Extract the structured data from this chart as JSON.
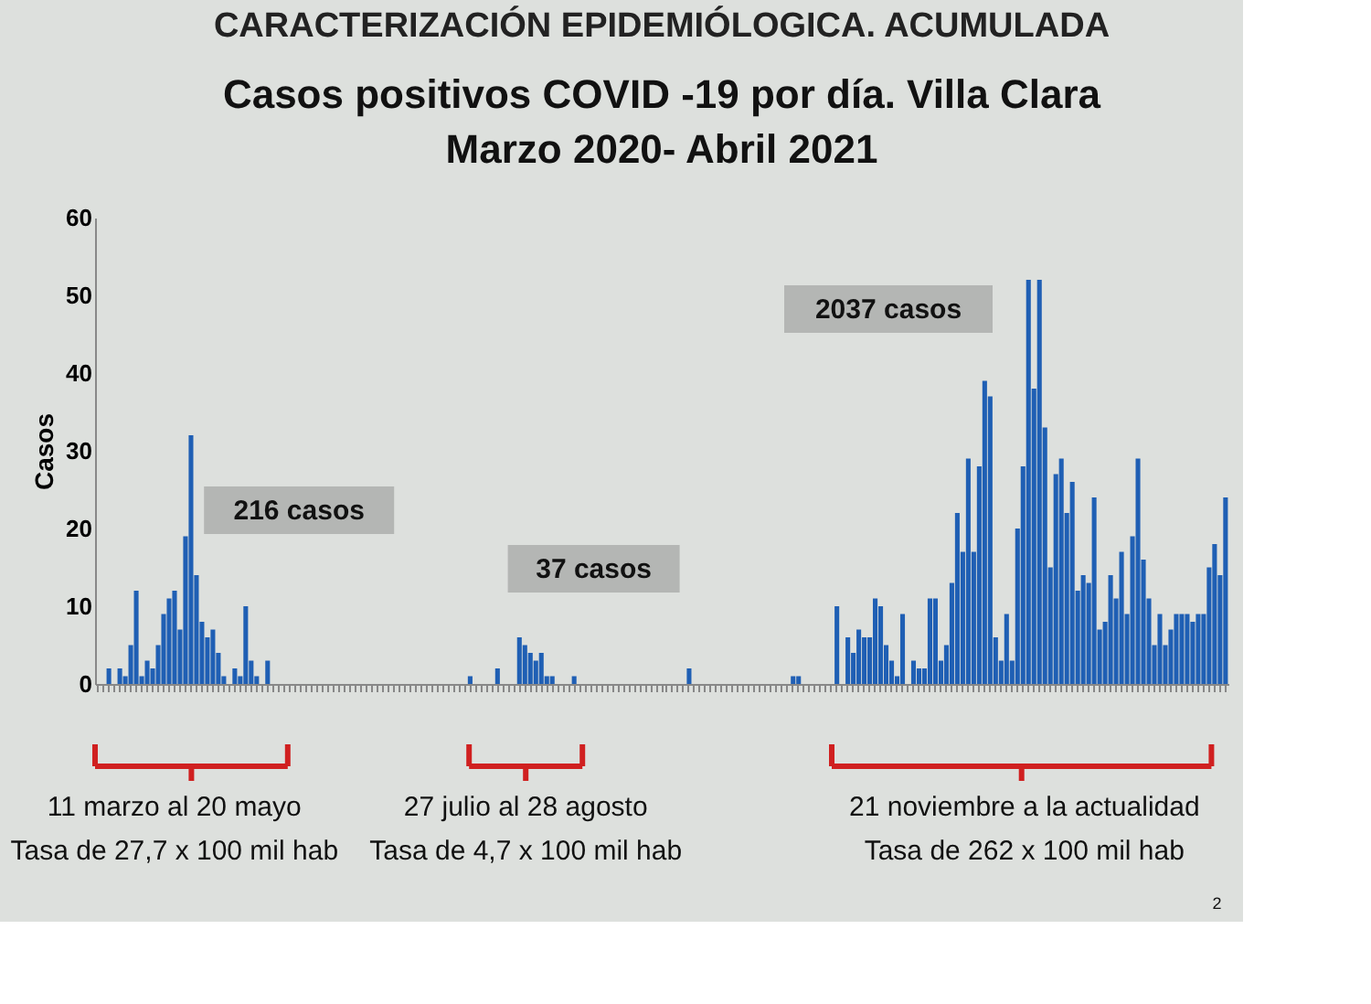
{
  "chart_data": {
    "type": "bar",
    "title": "CARACTERIZACIÓN EPIDEMIÓLOGICA. ACUMULADA",
    "subtitle": "Casos positivos COVID -19 por día. Villa Clara\nMarzo 2020- Abril 2021",
    "ylabel": "Casos",
    "categories": [
      null,
      null,
      null,
      null,
      null,
      null,
      null,
      null,
      null,
      null,
      null,
      null,
      null,
      null,
      null,
      null,
      null,
      null,
      null,
      null,
      null,
      null,
      null,
      null,
      null,
      null,
      null,
      null,
      null,
      null,
      null,
      null,
      null,
      null,
      null,
      null,
      null,
      null,
      null,
      null,
      null,
      null,
      null,
      null,
      null,
      null,
      null,
      null,
      null,
      null,
      null,
      null,
      null,
      null,
      null,
      null,
      null,
      null,
      null,
      null,
      null,
      null,
      null,
      null,
      null,
      null,
      null,
      null,
      null,
      null,
      null,
      null,
      null,
      null,
      null,
      null,
      null,
      null,
      null,
      null,
      null,
      null,
      null,
      null,
      null,
      null,
      null,
      null,
      null,
      null,
      null,
      null,
      null,
      null,
      null,
      null,
      null,
      null,
      null,
      null,
      null,
      null,
      null,
      null,
      null,
      null,
      null,
      null,
      null,
      null,
      null,
      null,
      null,
      null,
      null,
      null,
      null,
      null,
      null,
      null,
      null,
      null,
      null,
      null,
      null,
      null,
      null,
      null,
      null,
      null,
      null,
      null,
      null,
      null,
      null,
      null,
      null,
      null,
      null,
      null,
      null,
      null,
      null,
      null,
      null,
      null,
      null,
      null,
      null,
      null,
      null,
      null,
      null,
      null,
      null,
      null,
      null,
      null,
      null,
      null,
      null,
      null,
      null,
      null,
      null,
      null,
      null,
      null,
      null,
      null,
      null,
      null,
      null,
      null,
      null,
      null,
      null,
      null,
      null,
      null,
      null,
      null,
      null,
      null,
      null,
      null,
      null,
      null,
      null,
      null,
      null,
      null,
      null,
      null,
      null,
      null,
      null,
      null,
      null,
      null,
      null,
      null,
      null,
      null,
      null,
      null,
      null
    ],
    "values": [
      0,
      0,
      2,
      0,
      2,
      1,
      5,
      12,
      1,
      3,
      2,
      5,
      9,
      11,
      12,
      7,
      19,
      32,
      14,
      8,
      6,
      7,
      4,
      1,
      0,
      2,
      1,
      10,
      3,
      1,
      0,
      3,
      0,
      0,
      0,
      0,
      0,
      0,
      0,
      0,
      0,
      0,
      0,
      0,
      0,
      0,
      0,
      0,
      0,
      0,
      0,
      0,
      0,
      0,
      0,
      0,
      0,
      0,
      0,
      0,
      0,
      0,
      0,
      0,
      0,
      0,
      0,
      0,
      1,
      0,
      0,
      0,
      0,
      2,
      0,
      0,
      0,
      6,
      5,
      4,
      3,
      4,
      1,
      1,
      0,
      0,
      0,
      1,
      0,
      0,
      0,
      0,
      0,
      0,
      0,
      0,
      0,
      0,
      0,
      0,
      0,
      0,
      0,
      0,
      0,
      0,
      0,
      0,
      2,
      0,
      0,
      0,
      0,
      0,
      0,
      0,
      0,
      0,
      0,
      0,
      0,
      0,
      0,
      0,
      0,
      0,
      0,
      1,
      1,
      0,
      0,
      0,
      0,
      0,
      0,
      10,
      0,
      6,
      4,
      7,
      6,
      6,
      11,
      10,
      5,
      3,
      1,
      9,
      0,
      3,
      2,
      2,
      11,
      11,
      3,
      5,
      13,
      22,
      17,
      29,
      17,
      28,
      39,
      37,
      6,
      3,
      9,
      3,
      20,
      28,
      52,
      38,
      52,
      33,
      15,
      27,
      29,
      22,
      26,
      12,
      14,
      13,
      24,
      7,
      8,
      14,
      11,
      17,
      9,
      19,
      29,
      16,
      11,
      5,
      9,
      5,
      7,
      9,
      9,
      9,
      8,
      9,
      9,
      15,
      18,
      14,
      24
    ],
    "color": "#1f5fb4",
    "ylim": [
      0,
      60
    ],
    "yticks": [
      0,
      10,
      20,
      30,
      40,
      50,
      60
    ],
    "annotations": [
      "216 casos",
      "37 casos",
      "2037 casos",
      "11 marzo al 20 mayo\nTasa de 27,7 x 100 mil hab",
      "27 julio al 28 agosto\nTasa de 4,7 x 100 mil hab",
      "21 noviembre a la actualidad\nTasa de 262 x 100 mil hab",
      "2"
    ]
  }
}
